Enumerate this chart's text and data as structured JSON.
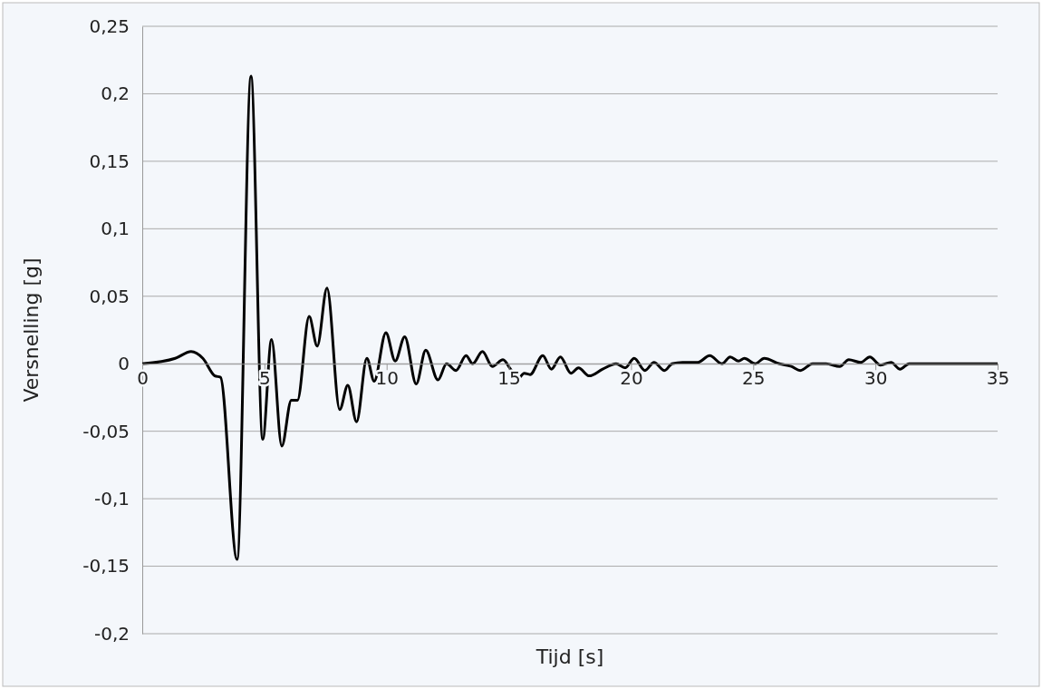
{
  "chart_data": {
    "type": "line",
    "xlabel": "Tijd [s]",
    "ylabel": "Versnelling [g]",
    "xlim": [
      0,
      35
    ],
    "xticks": [
      0,
      5,
      10,
      15,
      20,
      25,
      30,
      35
    ],
    "ylim": [
      -0.2,
      0.25
    ],
    "yticks": [
      {
        "value": -0.2,
        "label": "-0,2"
      },
      {
        "value": -0.15,
        "label": "-0,15"
      },
      {
        "value": -0.1,
        "label": "-0,1"
      },
      {
        "value": -0.05,
        "label": "-0,05"
      },
      {
        "value": 0,
        "label": "0"
      },
      {
        "value": 0.05,
        "label": "0,05"
      },
      {
        "value": 0.1,
        "label": "0,1"
      },
      {
        "value": 0.15,
        "label": "0,15"
      },
      {
        "value": 0.2,
        "label": "0,2"
      },
      {
        "value": 0.25,
        "label": "0,25"
      }
    ],
    "grid": "y",
    "marker": "none",
    "line_style": "solid",
    "series": [
      {
        "color": "#000000",
        "x": [
          0,
          1.35,
          2.0,
          2.48,
          2.97,
          3.2,
          3.88,
          4.45,
          4.93,
          5.29,
          5.71,
          6.1,
          6.35,
          6.83,
          7.16,
          7.56,
          8.08,
          8.41,
          8.77,
          9.19,
          9.49,
          9.97,
          10.35,
          10.74,
          11.21,
          11.6,
          12.1,
          12.45,
          12.84,
          13.25,
          13.52,
          13.92,
          14.33,
          14.76,
          15.07,
          15.38,
          15.63,
          15.87,
          16.39,
          16.74,
          17.11,
          17.54,
          17.85,
          18.29,
          18.84,
          19.39,
          19.76,
          20.13,
          20.57,
          20.94,
          21.37,
          21.68,
          22.11,
          22.73,
          23.22,
          23.72,
          24.06,
          24.4,
          24.64,
          25.08,
          25.45,
          26.07,
          26.56,
          26.93,
          27.43,
          27.98,
          28.54,
          28.91,
          29.4,
          29.77,
          30.21,
          30.64,
          31.01,
          31.38,
          35
        ],
        "values": [
          0,
          0.004,
          0.009,
          0.004,
          -0.009,
          -0.01,
          -0.145,
          0.213,
          -0.056,
          0.018,
          -0.061,
          -0.027,
          -0.027,
          0.035,
          0.013,
          0.056,
          -0.034,
          -0.016,
          -0.043,
          0.004,
          -0.013,
          0.023,
          0.002,
          0.02,
          -0.015,
          0.01,
          -0.012,
          0,
          -0.005,
          0.006,
          0,
          0.009,
          -0.002,
          0.003,
          -0.004,
          -0.011,
          -0.007,
          -0.008,
          0.006,
          -0.004,
          0.005,
          -0.007,
          -0.003,
          -0.009,
          -0.004,
          0,
          -0.003,
          0.004,
          -0.005,
          0.001,
          -0.005,
          0,
          0.001,
          0.001,
          0.006,
          0,
          0.005,
          0.002,
          0.004,
          0,
          0.004,
          0,
          -0.002,
          -0.005,
          0,
          0,
          -0.002,
          0.003,
          0.001,
          0.005,
          -0.001,
          0.001,
          -0.004,
          0,
          0
        ]
      }
    ]
  }
}
